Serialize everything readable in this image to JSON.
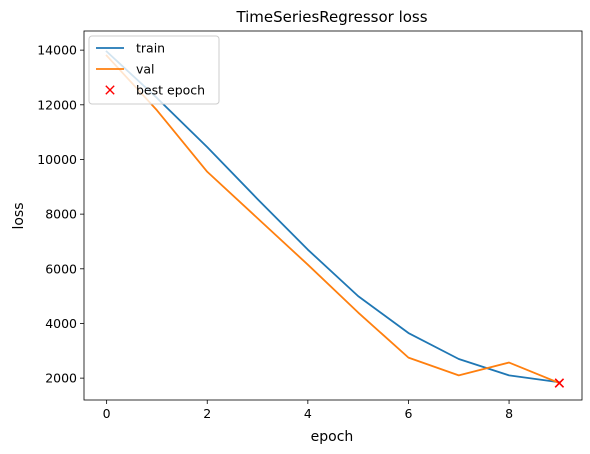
{
  "chart_data": {
    "type": "line",
    "title": "TimeSeriesRegressor loss",
    "xlabel": "epoch",
    "ylabel": "loss",
    "x": [
      0,
      1,
      2,
      3,
      4,
      5,
      6,
      7,
      8,
      9
    ],
    "series": [
      {
        "name": "train",
        "color": "#1f77b4",
        "values": [
          13950,
          12250,
          10450,
          8550,
          6700,
          5000,
          3650,
          2700,
          2100,
          1850
        ]
      },
      {
        "name": "val",
        "color": "#ff7f0e",
        "values": [
          13800,
          11800,
          9550,
          7850,
          6150,
          4400,
          2750,
          2100,
          2570,
          1820
        ]
      }
    ],
    "markers": [
      {
        "name": "best epoch",
        "color": "#ff0000",
        "symbol": "x",
        "x": 9,
        "y": 1820
      }
    ],
    "xlim": [
      -0.45,
      9.45
    ],
    "ylim": [
      1200,
      14700
    ],
    "xticks": [
      0,
      2,
      4,
      6,
      8
    ],
    "yticks": [
      2000,
      4000,
      6000,
      8000,
      10000,
      12000,
      14000
    ],
    "grid": false,
    "legend_position": "upper-left"
  }
}
